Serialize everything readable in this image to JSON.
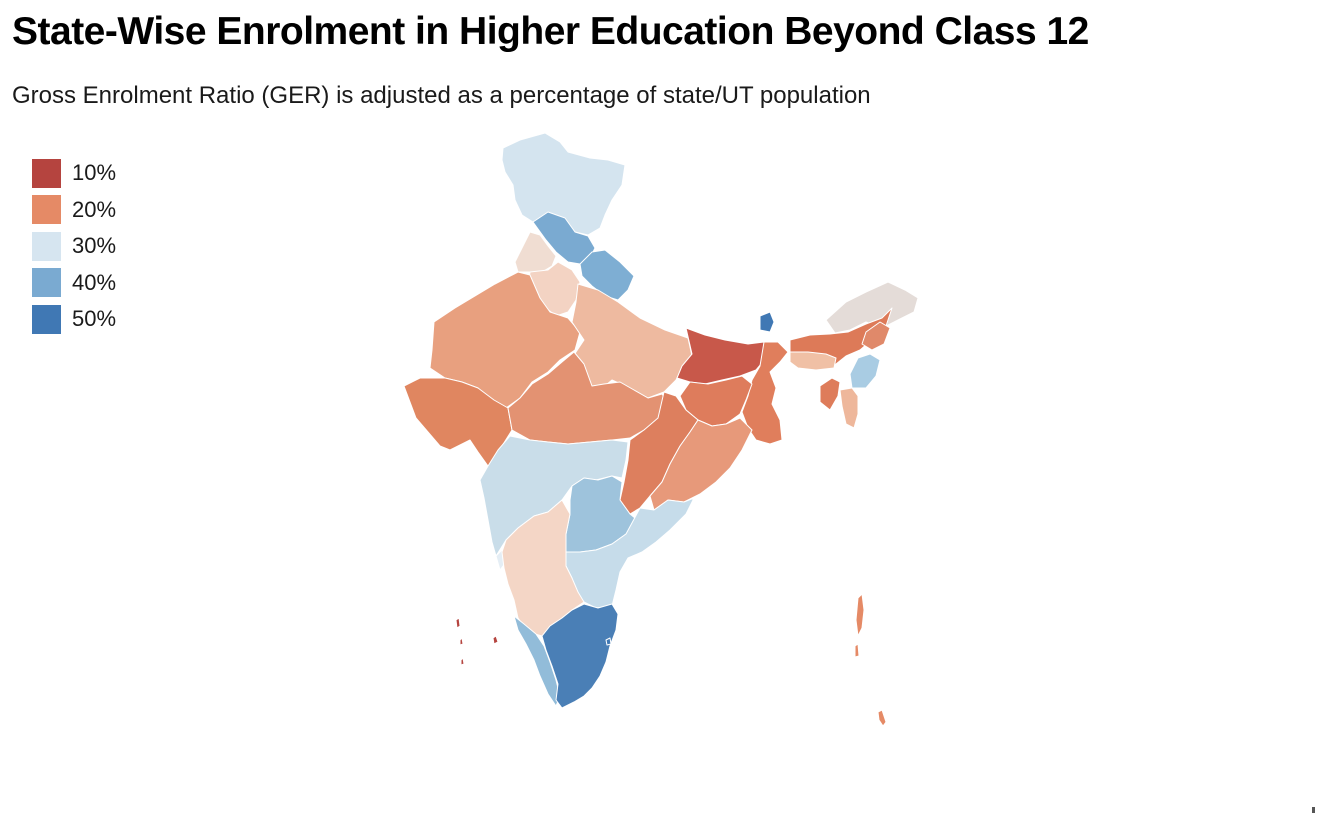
{
  "header": {
    "title": "State-Wise Enrolment in Higher Education Beyond Class 12",
    "subtitle": "Gross Enrolment Ratio (GER) is adjusted as a percentage of state/UT population"
  },
  "legend": {
    "items": [
      {
        "label": "10%",
        "color": "#b5443f"
      },
      {
        "label": "20%",
        "color": "#e58a66"
      },
      {
        "label": "30%",
        "color": "#d6e5f0"
      },
      {
        "label": "40%",
        "color": "#7aaad1"
      },
      {
        "label": "50%",
        "color": "#4078b4"
      }
    ]
  },
  "regions": [
    {
      "id": "jammu-kashmir",
      "color": "#d4e4ef"
    },
    {
      "id": "himachal-pradesh",
      "color": "#7aaad1"
    },
    {
      "id": "punjab",
      "color": "#f0ddd2"
    },
    {
      "id": "chandigarh",
      "color": "#4078b4"
    },
    {
      "id": "uttarakhand",
      "color": "#7eaed3"
    },
    {
      "id": "haryana",
      "color": "#f3d3c3"
    },
    {
      "id": "delhi",
      "color": "#f5cdb9"
    },
    {
      "id": "rajasthan",
      "color": "#e8a07f"
    },
    {
      "id": "uttar-pradesh",
      "color": "#eebaa0"
    },
    {
      "id": "bihar",
      "color": "#c8584a"
    },
    {
      "id": "sikkim",
      "color": "#4078b4"
    },
    {
      "id": "arunachal-pradesh",
      "color": "#e4dcd8"
    },
    {
      "id": "assam",
      "color": "#dd7a58"
    },
    {
      "id": "meghalaya",
      "color": "#f0c0a5"
    },
    {
      "id": "nagaland",
      "color": "#e0896a"
    },
    {
      "id": "manipur",
      "color": "#a9cce3"
    },
    {
      "id": "mizoram",
      "color": "#eeb79b"
    },
    {
      "id": "tripura",
      "color": "#de7c5a"
    },
    {
      "id": "west-bengal",
      "color": "#e07e5c"
    },
    {
      "id": "jharkhand",
      "color": "#de7c5c"
    },
    {
      "id": "gujarat",
      "color": "#e08660"
    },
    {
      "id": "madhya-pradesh",
      "color": "#e39272"
    },
    {
      "id": "chhattisgarh",
      "color": "#dd7f5e"
    },
    {
      "id": "odisha",
      "color": "#e7997a"
    },
    {
      "id": "maharashtra",
      "color": "#c9dde9"
    },
    {
      "id": "telangana",
      "color": "#9ec3dc"
    },
    {
      "id": "andhra-pradesh",
      "color": "#c6dcea"
    },
    {
      "id": "goa",
      "color": "#e5eef5"
    },
    {
      "id": "karnataka",
      "color": "#f4d6c6"
    },
    {
      "id": "kerala",
      "color": "#92bcd9"
    },
    {
      "id": "tamil-nadu",
      "color": "#4a7fb6"
    },
    {
      "id": "puducherry",
      "color": "#4078b4"
    },
    {
      "id": "lakshadweep",
      "color": "#b5443f"
    },
    {
      "id": "andaman-nicobar",
      "color": "#e58a66"
    }
  ]
}
